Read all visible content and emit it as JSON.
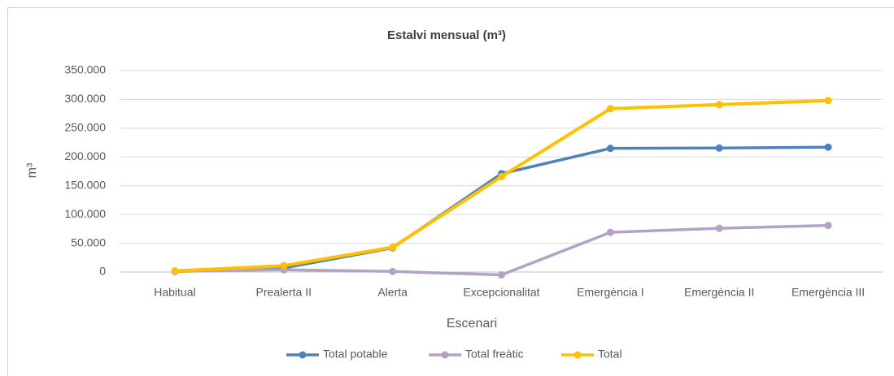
{
  "chart_data": {
    "type": "line",
    "title": "Estalvi mensual (m³)",
    "x_label": "Escenari",
    "y_label": "m³",
    "categories": [
      "Habitual",
      "Prealerta II",
      "Alerta",
      "Excepcionalitat",
      "Emergència I",
      "Emergència II",
      "Emergència III"
    ],
    "series": [
      {
        "name": "Total potable",
        "color": "#4f81bd",
        "values": [
          1000,
          7000,
          42000,
          171000,
          215000,
          215500,
          217000
        ]
      },
      {
        "name": "Total freàtic",
        "color": "#b3a2c7",
        "values": [
          1000,
          4000,
          1000,
          -5000,
          69000,
          76000,
          81000
        ]
      },
      {
        "name": "Total",
        "color": "#ffc000",
        "values": [
          2000,
          11000,
          43000,
          166000,
          284000,
          291000,
          298000
        ]
      }
    ],
    "ylim": [
      0,
      350000
    ],
    "yticks": [
      0,
      {
        "value": 50000,
        "label": "50.000"
      },
      {
        "value": 100000,
        "label": "100.000"
      },
      {
        "value": 150000,
        "label": "150.000"
      },
      {
        "value": 200000,
        "label": "200.000"
      },
      {
        "value": 250000,
        "label": "250.000"
      },
      {
        "value": 300000,
        "label": "300.000"
      },
      {
        "value": 350000,
        "label": "350.000"
      }
    ],
    "grid": true,
    "legend": "bottom"
  }
}
